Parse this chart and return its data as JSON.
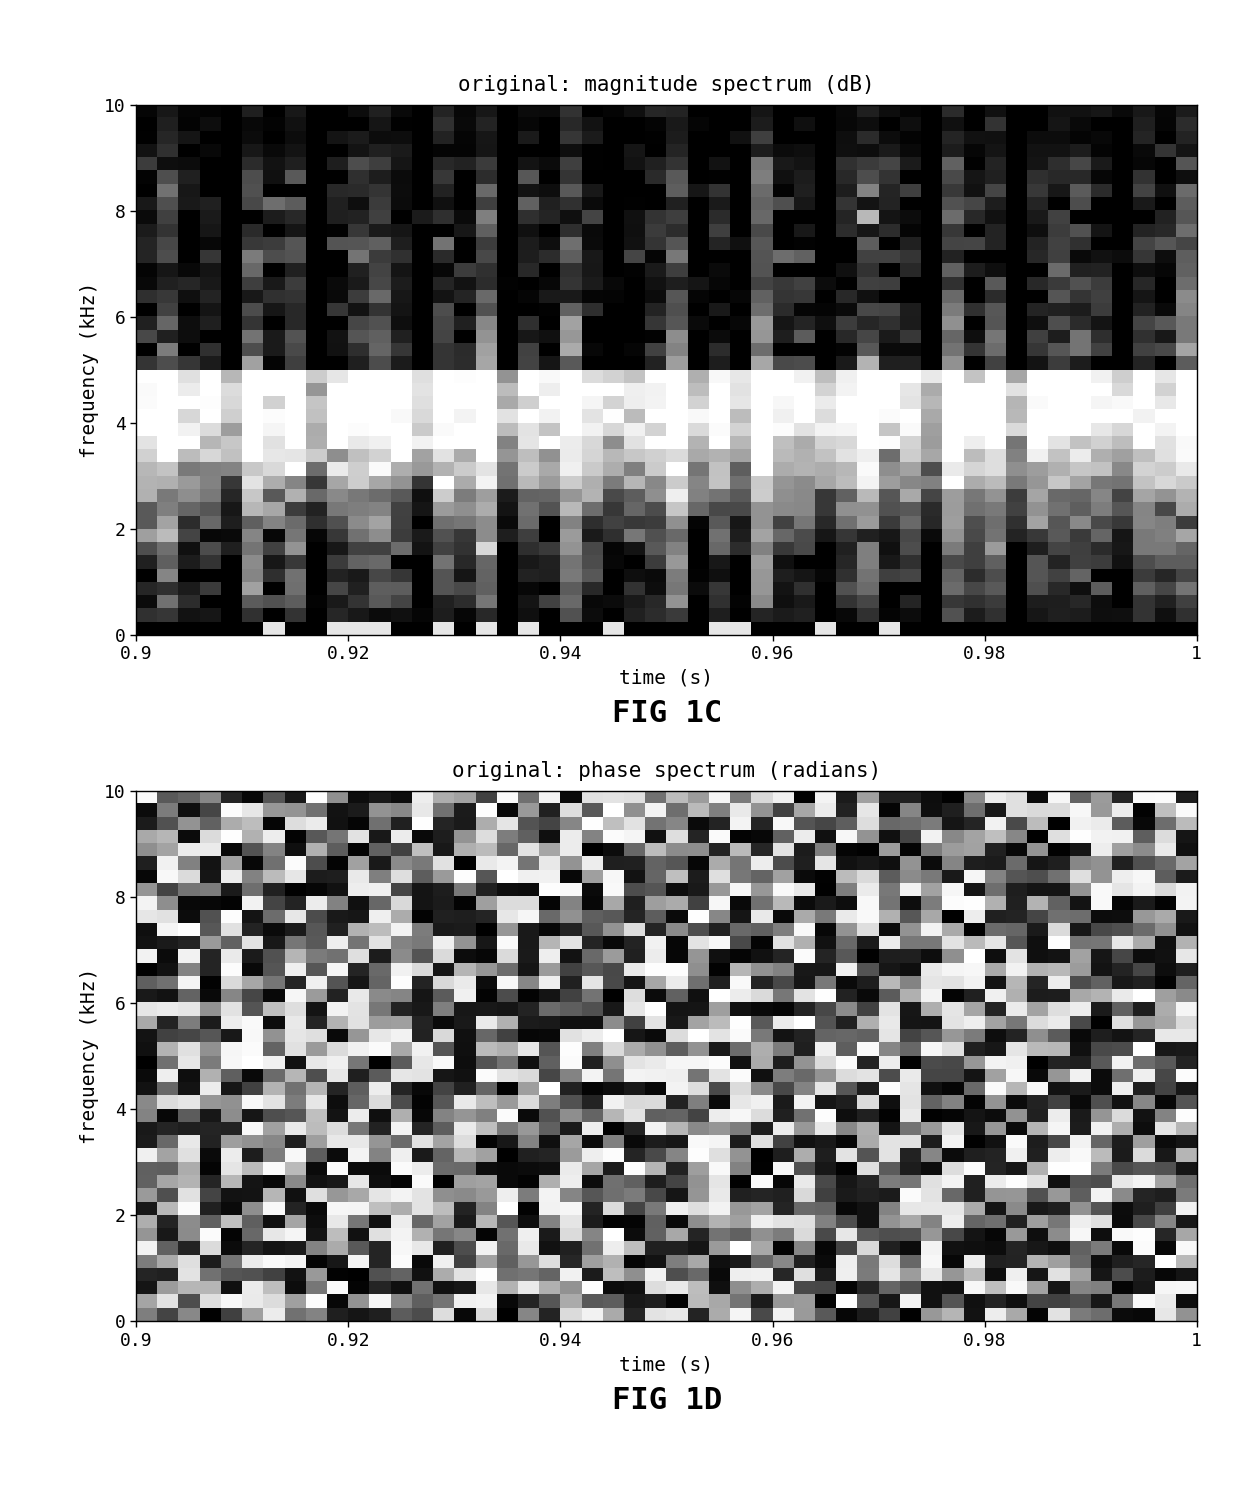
{
  "fig1c_title": "original: magnitude spectrum (dB)",
  "fig1d_title": "original: phase spectrum (radians)",
  "fig1c_label": "FIG 1C",
  "fig1d_label": "FIG 1D",
  "xlabel": "time (s)",
  "ylabel": "frequency (kHz)",
  "xlim": [
    0.9,
    1.0
  ],
  "ylim": [
    0,
    10
  ],
  "xticks": [
    0.9,
    0.92,
    0.94,
    0.96,
    0.98,
    1.0
  ],
  "xtick_labels": [
    "0.9",
    "0.92",
    "0.94",
    "0.96",
    "0.98",
    "1"
  ],
  "yticks": [
    0,
    2,
    4,
    6,
    8,
    10
  ],
  "ytick_labels": [
    "0",
    "2",
    "4",
    "6",
    "8",
    "10"
  ],
  "n_time_bins": 50,
  "n_freq_bins": 40,
  "seed_mag": 7,
  "seed_phase": 99,
  "title_fontsize": 15,
  "label_fontsize": 14,
  "tick_fontsize": 13,
  "fig_label_fontsize": 22,
  "background_color": "#ffffff"
}
